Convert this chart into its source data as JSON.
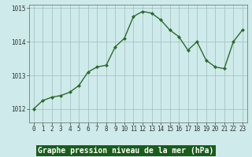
{
  "x": [
    0,
    1,
    2,
    3,
    4,
    5,
    6,
    7,
    8,
    9,
    10,
    11,
    12,
    13,
    14,
    15,
    16,
    17,
    18,
    19,
    20,
    21,
    22,
    23
  ],
  "y": [
    1012.0,
    1012.25,
    1012.35,
    1012.4,
    1012.5,
    1012.7,
    1013.1,
    1013.25,
    1013.3,
    1013.85,
    1014.1,
    1014.75,
    1014.9,
    1014.85,
    1014.65,
    1014.35,
    1014.15,
    1013.75,
    1014.0,
    1013.45,
    1013.25,
    1013.2,
    1014.0,
    1014.35
  ],
  "ylim": [
    1011.6,
    1015.1
  ],
  "yticks": [
    1012,
    1013,
    1014,
    1015
  ],
  "xticks": [
    0,
    1,
    2,
    3,
    4,
    5,
    6,
    7,
    8,
    9,
    10,
    11,
    12,
    13,
    14,
    15,
    16,
    17,
    18,
    19,
    20,
    21,
    22,
    23
  ],
  "xlabel": "Graphe pression niveau de la mer (hPa)",
  "line_color": "#2d6a2d",
  "marker": "D",
  "marker_size": 2.0,
  "background_color": "#ceeaea",
  "grid_color": "#9ebebe",
  "fig_bg": "#ceeaea",
  "linewidth": 1.0,
  "xlabel_bg": "#1a5c1a",
  "xlabel_fg": "#ffffff",
  "tick_fontsize": 5.5,
  "xlabel_fontsize": 7.0
}
